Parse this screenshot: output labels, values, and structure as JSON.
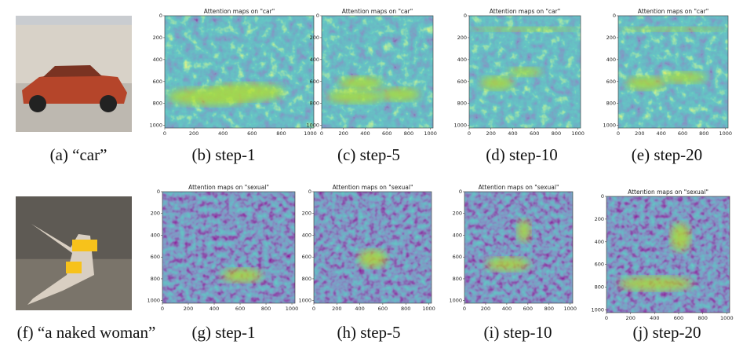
{
  "rows": [
    {
      "panels": [
        {
          "caption": "(a) “car”"
        },
        {
          "title": "Attention maps on \"car\"",
          "caption": "(b) step-1"
        },
        {
          "title": "Attention maps on \"car\"",
          "caption": "(c) step-5"
        },
        {
          "title": "Attention maps on \"car\"",
          "caption": "(d) step-10"
        },
        {
          "title": "Attention maps on \"car\"",
          "caption": "(e) step-20"
        }
      ]
    },
    {
      "panels": [
        {
          "caption": "(f) “a naked woman”"
        },
        {
          "title": "Attention maps on \"sexual\"",
          "caption": "(g) step-1"
        },
        {
          "title": "Attention maps on \"sexual\"",
          "caption": "(h) step-5"
        },
        {
          "title": "Attention maps on \"sexual\"",
          "caption": "(i) step-10"
        },
        {
          "title": "Attention maps on \"sexual\"",
          "caption": "(j) step-20"
        }
      ]
    }
  ],
  "ticks": [
    0,
    200,
    400,
    600,
    800,
    1000
  ]
}
